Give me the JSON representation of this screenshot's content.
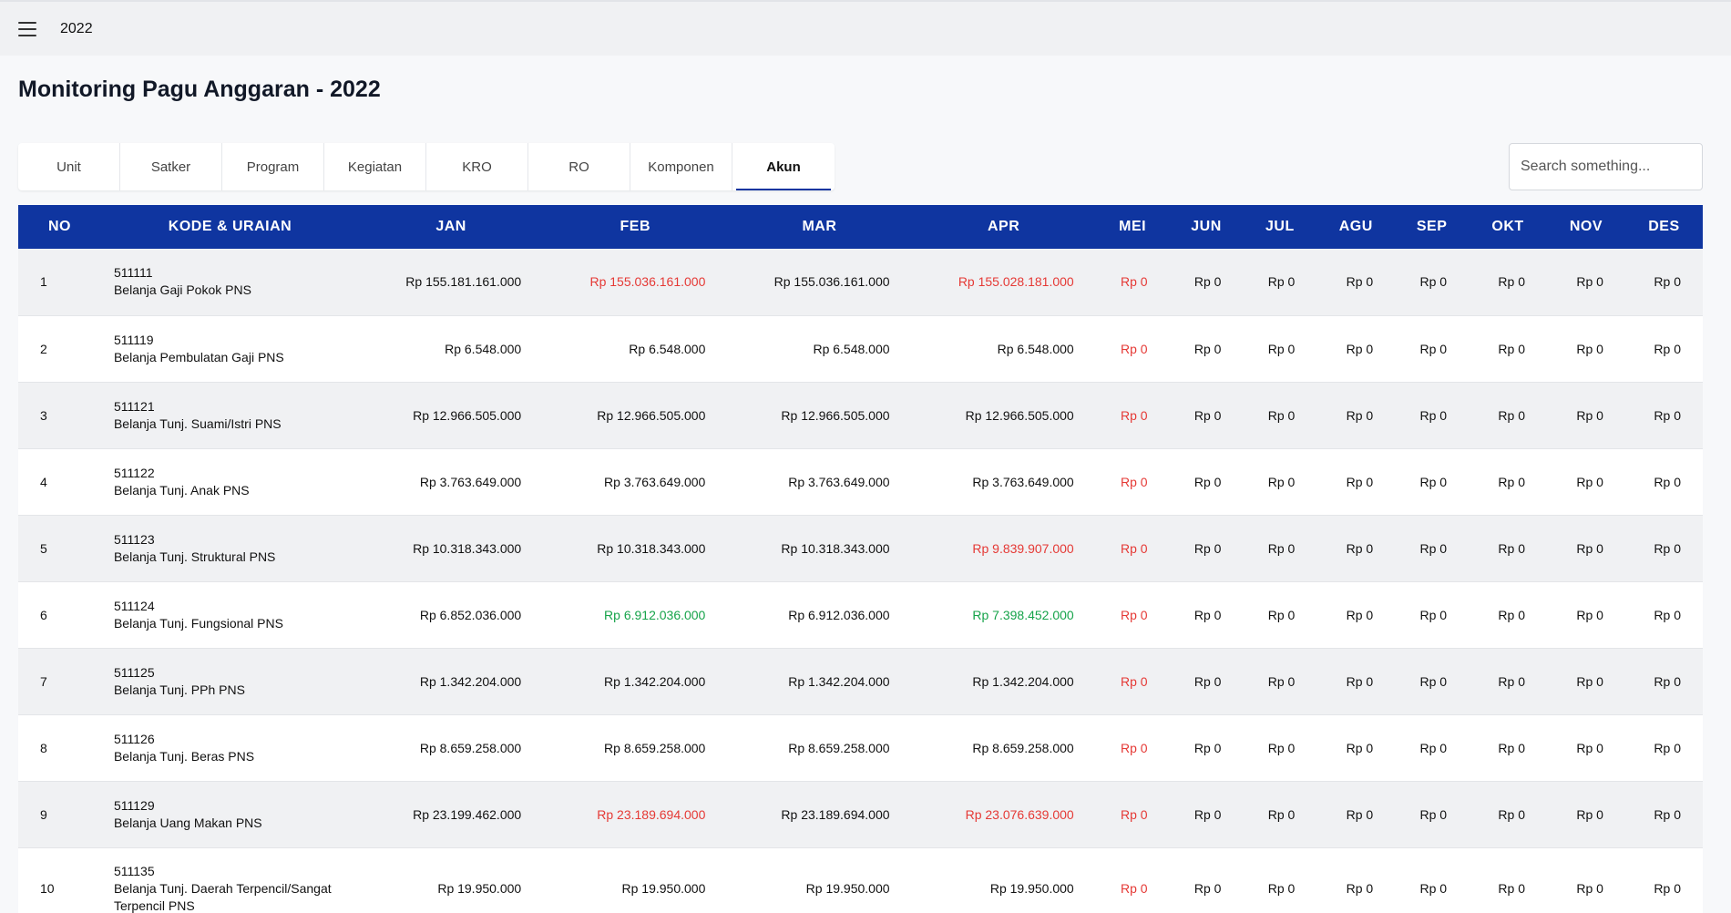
{
  "header": {
    "year": "2022"
  },
  "page_title": "Monitoring Pagu Anggaran - 2022",
  "tabs": [
    {
      "label": "Unit",
      "active": false
    },
    {
      "label": "Satker",
      "active": false
    },
    {
      "label": "Program",
      "active": false
    },
    {
      "label": "Kegiatan",
      "active": false
    },
    {
      "label": "KRO",
      "active": false
    },
    {
      "label": "RO",
      "active": false
    },
    {
      "label": "Komponen",
      "active": false
    },
    {
      "label": "Akun",
      "active": true
    }
  ],
  "search": {
    "placeholder": "Search something..."
  },
  "colors": {
    "header_bg": "#0f35a0",
    "decrease": "#e53935",
    "increase": "#16a34a"
  },
  "table": {
    "columns": [
      "NO",
      "KODE & URAIAN",
      "JAN",
      "FEB",
      "MAR",
      "APR",
      "MEI",
      "JUN",
      "JUL",
      "AGU",
      "SEP",
      "OKT",
      "NOV",
      "DES"
    ],
    "rows": [
      {
        "no": "1",
        "kode": "511111",
        "uraian": "Belanja Gaji Pokok PNS",
        "months": [
          [
            "Rp 155.181.161.000",
            ""
          ],
          [
            "Rp 155.036.161.000",
            "red"
          ],
          [
            "Rp 155.036.161.000",
            ""
          ],
          [
            "Rp 155.028.181.000",
            "red"
          ],
          [
            "Rp 0",
            "red"
          ],
          [
            "Rp 0",
            ""
          ],
          [
            "Rp 0",
            ""
          ],
          [
            "Rp 0",
            ""
          ],
          [
            "Rp 0",
            ""
          ],
          [
            "Rp 0",
            ""
          ],
          [
            "Rp 0",
            ""
          ],
          [
            "Rp 0",
            ""
          ]
        ]
      },
      {
        "no": "2",
        "kode": "511119",
        "uraian": "Belanja Pembulatan Gaji PNS",
        "months": [
          [
            "Rp 6.548.000",
            ""
          ],
          [
            "Rp 6.548.000",
            ""
          ],
          [
            "Rp 6.548.000",
            ""
          ],
          [
            "Rp 6.548.000",
            ""
          ],
          [
            "Rp 0",
            "red"
          ],
          [
            "Rp 0",
            ""
          ],
          [
            "Rp 0",
            ""
          ],
          [
            "Rp 0",
            ""
          ],
          [
            "Rp 0",
            ""
          ],
          [
            "Rp 0",
            ""
          ],
          [
            "Rp 0",
            ""
          ],
          [
            "Rp 0",
            ""
          ]
        ]
      },
      {
        "no": "3",
        "kode": "511121",
        "uraian": "Belanja Tunj. Suami/Istri PNS",
        "months": [
          [
            "Rp 12.966.505.000",
            ""
          ],
          [
            "Rp 12.966.505.000",
            ""
          ],
          [
            "Rp 12.966.505.000",
            ""
          ],
          [
            "Rp 12.966.505.000",
            ""
          ],
          [
            "Rp 0",
            "red"
          ],
          [
            "Rp 0",
            ""
          ],
          [
            "Rp 0",
            ""
          ],
          [
            "Rp 0",
            ""
          ],
          [
            "Rp 0",
            ""
          ],
          [
            "Rp 0",
            ""
          ],
          [
            "Rp 0",
            ""
          ],
          [
            "Rp 0",
            ""
          ]
        ]
      },
      {
        "no": "4",
        "kode": "511122",
        "uraian": "Belanja Tunj. Anak PNS",
        "months": [
          [
            "Rp 3.763.649.000",
            ""
          ],
          [
            "Rp 3.763.649.000",
            ""
          ],
          [
            "Rp 3.763.649.000",
            ""
          ],
          [
            "Rp 3.763.649.000",
            ""
          ],
          [
            "Rp 0",
            "red"
          ],
          [
            "Rp 0",
            ""
          ],
          [
            "Rp 0",
            ""
          ],
          [
            "Rp 0",
            ""
          ],
          [
            "Rp 0",
            ""
          ],
          [
            "Rp 0",
            ""
          ],
          [
            "Rp 0",
            ""
          ],
          [
            "Rp 0",
            ""
          ]
        ]
      },
      {
        "no": "5",
        "kode": "511123",
        "uraian": "Belanja Tunj. Struktural PNS",
        "months": [
          [
            "Rp 10.318.343.000",
            ""
          ],
          [
            "Rp 10.318.343.000",
            ""
          ],
          [
            "Rp 10.318.343.000",
            ""
          ],
          [
            "Rp 9.839.907.000",
            "red"
          ],
          [
            "Rp 0",
            "red"
          ],
          [
            "Rp 0",
            ""
          ],
          [
            "Rp 0",
            ""
          ],
          [
            "Rp 0",
            ""
          ],
          [
            "Rp 0",
            ""
          ],
          [
            "Rp 0",
            ""
          ],
          [
            "Rp 0",
            ""
          ],
          [
            "Rp 0",
            ""
          ]
        ]
      },
      {
        "no": "6",
        "kode": "511124",
        "uraian": "Belanja Tunj. Fungsional PNS",
        "months": [
          [
            "Rp 6.852.036.000",
            ""
          ],
          [
            "Rp 6.912.036.000",
            "green"
          ],
          [
            "Rp 6.912.036.000",
            ""
          ],
          [
            "Rp 7.398.452.000",
            "green"
          ],
          [
            "Rp 0",
            "red"
          ],
          [
            "Rp 0",
            ""
          ],
          [
            "Rp 0",
            ""
          ],
          [
            "Rp 0",
            ""
          ],
          [
            "Rp 0",
            ""
          ],
          [
            "Rp 0",
            ""
          ],
          [
            "Rp 0",
            ""
          ],
          [
            "Rp 0",
            ""
          ]
        ]
      },
      {
        "no": "7",
        "kode": "511125",
        "uraian": "Belanja Tunj. PPh PNS",
        "months": [
          [
            "Rp 1.342.204.000",
            ""
          ],
          [
            "Rp 1.342.204.000",
            ""
          ],
          [
            "Rp 1.342.204.000",
            ""
          ],
          [
            "Rp 1.342.204.000",
            ""
          ],
          [
            "Rp 0",
            "red"
          ],
          [
            "Rp 0",
            ""
          ],
          [
            "Rp 0",
            ""
          ],
          [
            "Rp 0",
            ""
          ],
          [
            "Rp 0",
            ""
          ],
          [
            "Rp 0",
            ""
          ],
          [
            "Rp 0",
            ""
          ],
          [
            "Rp 0",
            ""
          ]
        ]
      },
      {
        "no": "8",
        "kode": "511126",
        "uraian": "Belanja Tunj. Beras PNS",
        "months": [
          [
            "Rp 8.659.258.000",
            ""
          ],
          [
            "Rp 8.659.258.000",
            ""
          ],
          [
            "Rp 8.659.258.000",
            ""
          ],
          [
            "Rp 8.659.258.000",
            ""
          ],
          [
            "Rp 0",
            "red"
          ],
          [
            "Rp 0",
            ""
          ],
          [
            "Rp 0",
            ""
          ],
          [
            "Rp 0",
            ""
          ],
          [
            "Rp 0",
            ""
          ],
          [
            "Rp 0",
            ""
          ],
          [
            "Rp 0",
            ""
          ],
          [
            "Rp 0",
            ""
          ]
        ]
      },
      {
        "no": "9",
        "kode": "511129",
        "uraian": "Belanja Uang Makan PNS",
        "months": [
          [
            "Rp 23.199.462.000",
            ""
          ],
          [
            "Rp 23.189.694.000",
            "red"
          ],
          [
            "Rp 23.189.694.000",
            ""
          ],
          [
            "Rp 23.076.639.000",
            "red"
          ],
          [
            "Rp 0",
            "red"
          ],
          [
            "Rp 0",
            ""
          ],
          [
            "Rp 0",
            ""
          ],
          [
            "Rp 0",
            ""
          ],
          [
            "Rp 0",
            ""
          ],
          [
            "Rp 0",
            ""
          ],
          [
            "Rp 0",
            ""
          ],
          [
            "Rp 0",
            ""
          ]
        ]
      },
      {
        "no": "10",
        "kode": "511135",
        "uraian": "Belanja Tunj. Daerah Terpencil/Sangat Terpencil PNS",
        "months": [
          [
            "Rp 19.950.000",
            ""
          ],
          [
            "Rp 19.950.000",
            ""
          ],
          [
            "Rp 19.950.000",
            ""
          ],
          [
            "Rp 19.950.000",
            ""
          ],
          [
            "Rp 0",
            "red"
          ],
          [
            "Rp 0",
            ""
          ],
          [
            "Rp 0",
            ""
          ],
          [
            "Rp 0",
            ""
          ],
          [
            "Rp 0",
            ""
          ],
          [
            "Rp 0",
            ""
          ],
          [
            "Rp 0",
            ""
          ],
          [
            "Rp 0",
            ""
          ]
        ]
      }
    ]
  }
}
